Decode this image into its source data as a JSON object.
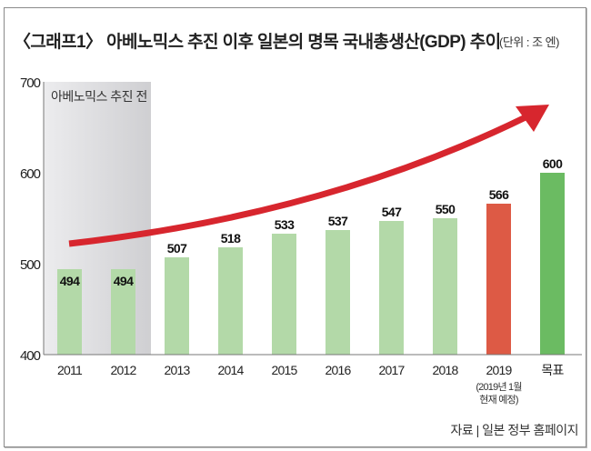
{
  "header": {
    "title": "〈그래프1〉 아베노믹스 추진 이후 일본의 명목 국내총생산(GDP) 추이",
    "unit": "(단위 : 조 엔)"
  },
  "footer": {
    "source": "자료 | 일본 정부 홈페이지"
  },
  "colors": {
    "bar_default": "#b3d9a8",
    "bar_forecast": "#dd5a45",
    "bar_target": "#6bbb62",
    "arrow": "#d7262e",
    "shade": "#d6d6d8"
  },
  "chart_data": {
    "type": "bar",
    "title": "〈그래프1〉 아베노믹스 추진 이후 일본의 명목 국내총생산(GDP) 추이",
    "unit": "(단위 : 조 엔)",
    "categories": [
      "2011",
      "2012",
      "2013",
      "2014",
      "2015",
      "2016",
      "2017",
      "2018",
      "2019",
      "목표"
    ],
    "category_notes": [
      "",
      "",
      "",
      "",
      "",
      "",
      "",
      "",
      "(2019년 1월|현재 예정)",
      ""
    ],
    "values": [
      494,
      494,
      507,
      518,
      533,
      537,
      547,
      550,
      566,
      600
    ],
    "bar_kinds": [
      "default",
      "default",
      "default",
      "default",
      "default",
      "default",
      "default",
      "default",
      "forecast",
      "target"
    ],
    "ylim": [
      400,
      700
    ],
    "yticks": [
      400,
      500,
      600,
      700
    ],
    "shaded_region": {
      "label": "아베노믹스 추진 전",
      "categories": [
        "2011",
        "2012"
      ]
    },
    "annotations": [
      "upward trend arrow"
    ],
    "xlabel": "",
    "ylabel": "",
    "grid": false
  }
}
